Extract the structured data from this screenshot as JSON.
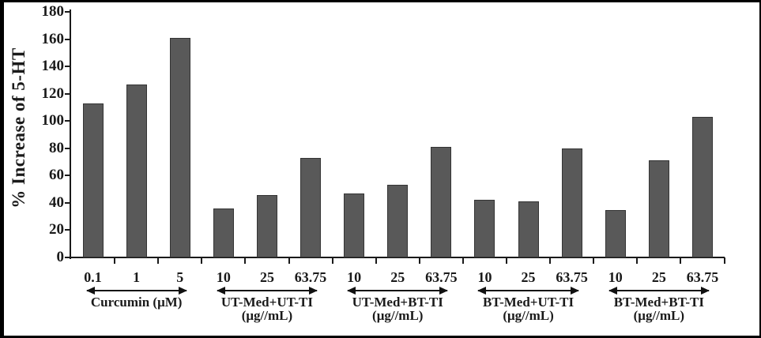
{
  "figure": {
    "background": "#ffffff",
    "frame_color": "#000000",
    "bar_fill": "#595959",
    "bar_stroke": "#343434",
    "axis_color": "#1a1a1a",
    "text_color": "#1a1a1a"
  },
  "chart_data": {
    "type": "bar",
    "title": "",
    "xlabel": "",
    "ylabel": "% Increase of 5-HT",
    "ylim": [
      0,
      180
    ],
    "ytick_step": 20,
    "yticks": [
      0,
      20,
      40,
      60,
      80,
      100,
      120,
      140,
      160,
      180
    ],
    "grid": false,
    "legend": "none",
    "bar_color_name": "dark-gray",
    "groups": [
      {
        "label": "Curcumin (μM)",
        "unit": "",
        "categories": [
          "0.1",
          "1",
          "5"
        ],
        "values": [
          113,
          127,
          161
        ]
      },
      {
        "label": "UT-Med+UT-TI",
        "unit": "(μg//mL)",
        "categories": [
          "10",
          "25",
          "63.75"
        ],
        "values": [
          36,
          46,
          73
        ]
      },
      {
        "label": "UT-Med+BT-TI",
        "unit": "(μg//mL)",
        "categories": [
          "10",
          "25",
          "63.75"
        ],
        "values": [
          47,
          53,
          81
        ]
      },
      {
        "label": "BT-Med+UT-TI",
        "unit": "(μg//mL)",
        "categories": [
          "10",
          "25",
          "63.75"
        ],
        "values": [
          42,
          41,
          80
        ]
      },
      {
        "label": "BT-Med+BT-TI",
        "unit": "(μg//mL)",
        "categories": [
          "10",
          "25",
          "63.75"
        ],
        "values": [
          35,
          71,
          103
        ]
      }
    ]
  }
}
